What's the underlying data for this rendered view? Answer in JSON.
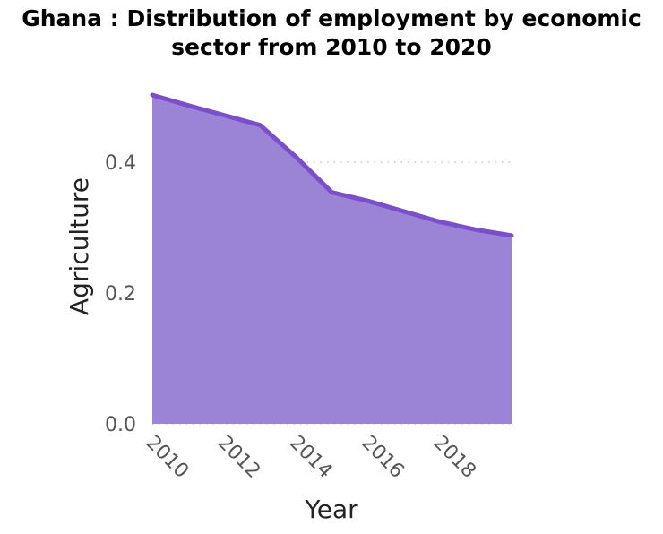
{
  "chart_data": {
    "type": "area",
    "title_line1": "Ghana : Distribution of employment by economic",
    "title_line2": "sector from 2010 to 2020",
    "xlabel": "Year",
    "ylabel": "Agriculture",
    "x": [
      2010,
      2011,
      2012,
      2013,
      2014,
      2015,
      2016,
      2017,
      2018,
      2019,
      2020
    ],
    "series": [
      {
        "values": [
          0.503,
          0.487,
          0.472,
          0.457,
          0.408,
          0.354,
          0.341,
          0.325,
          0.309,
          0.297,
          0.288
        ]
      }
    ],
    "xlim": [
      2010,
      2020
    ],
    "ylim": [
      0,
      0.503
    ],
    "x_ticks": [
      "2010",
      "2012",
      "2014",
      "2016",
      "2018"
    ],
    "y_ticks": [
      "0.0",
      "0.2",
      "0.4"
    ],
    "grid": "horizontal dotted",
    "colors": {
      "line": "#7b4fc9",
      "fill": "#9b84d6",
      "grid": "#bbbbbb"
    }
  }
}
